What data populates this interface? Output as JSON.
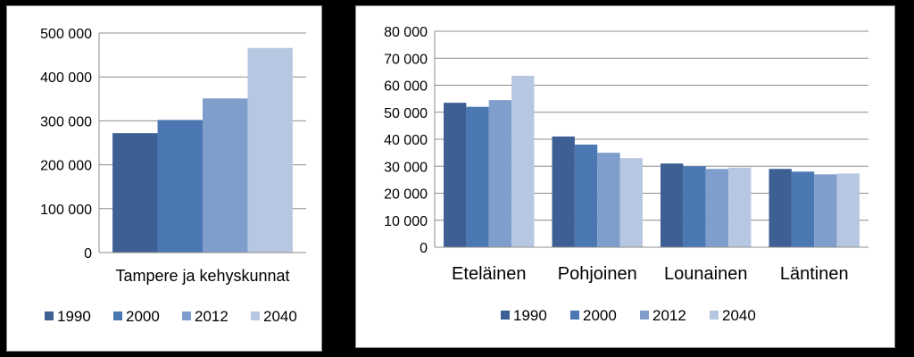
{
  "colors": {
    "background": "#000000",
    "panel": "#ffffff",
    "grid": "#8c8c8c",
    "axis": "#8c8c8c"
  },
  "chart_data": [
    {
      "type": "bar",
      "categories": [
        "Tampere ja kehyskunnat"
      ],
      "series": [
        {
          "name": "1990",
          "color": "#3d5f93",
          "values": [
            272000
          ]
        },
        {
          "name": "2000",
          "color": "#4b78b2",
          "values": [
            302000
          ]
        },
        {
          "name": "2012",
          "color": "#7f9ecb",
          "values": [
            351000
          ]
        },
        {
          "name": "2040",
          "color": "#b7c7e2",
          "values": [
            466000
          ]
        }
      ],
      "ylim": [
        0,
        500000
      ],
      "yticks": [
        0,
        100000,
        200000,
        300000,
        400000,
        500000
      ],
      "ytick_labels": [
        "0",
        "100 000",
        "200 000",
        "300 000",
        "400 000",
        "500 000"
      ],
      "grid": true,
      "legend": "bottom"
    },
    {
      "type": "bar",
      "categories": [
        "Eteläinen",
        "Pohjoinen",
        "Lounainen",
        "Läntinen"
      ],
      "series": [
        {
          "name": "1990",
          "color": "#3d5f93",
          "values": [
            53500,
            41000,
            31000,
            29000
          ]
        },
        {
          "name": "2000",
          "color": "#4b78b2",
          "values": [
            52000,
            38000,
            30000,
            28000
          ]
        },
        {
          "name": "2012",
          "color": "#7f9ecb",
          "values": [
            54500,
            35000,
            29000,
            27000
          ]
        },
        {
          "name": "2040",
          "color": "#b7c7e2",
          "values": [
            63500,
            33000,
            29500,
            27300
          ]
        }
      ],
      "ylim": [
        0,
        80000
      ],
      "yticks": [
        0,
        10000,
        20000,
        30000,
        40000,
        50000,
        60000,
        70000,
        80000
      ],
      "ytick_labels": [
        "0",
        "10 000",
        "20 000",
        "30 000",
        "40 000",
        "50 000",
        "60 000",
        "70 000",
        "80 000"
      ],
      "grid": true,
      "legend": "bottom"
    }
  ]
}
